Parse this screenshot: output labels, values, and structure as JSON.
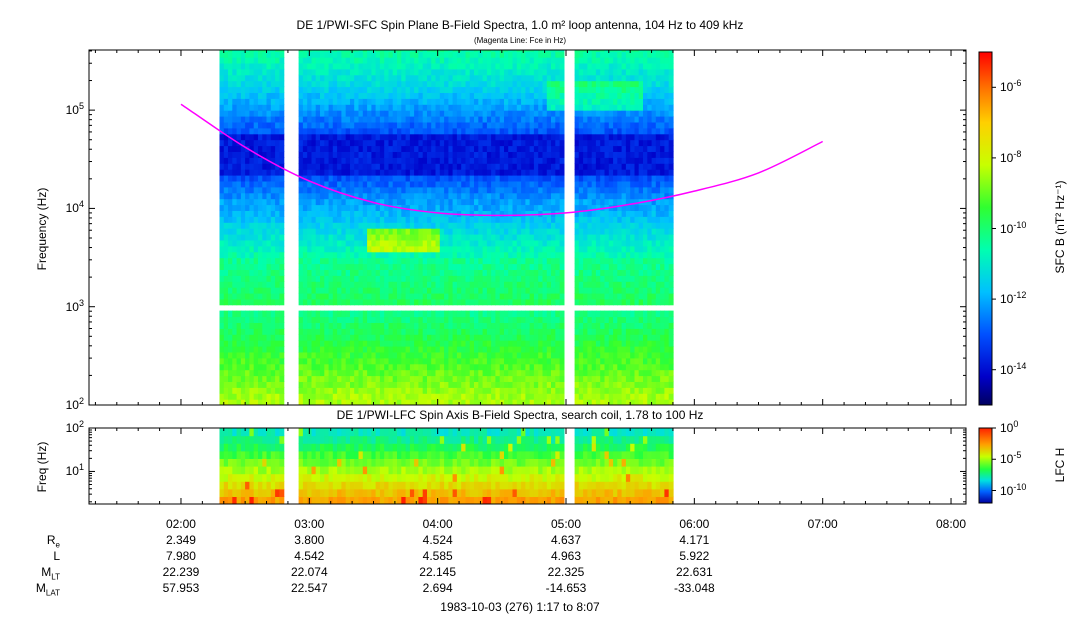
{
  "sfc": {
    "title": "DE 1/PWI-SFC  Spin Plane B-Field Spectra, 1.0 m² loop antenna, 104 Hz to 409 kHz",
    "subtitle": "(Magenta Line: Fce in Hz)",
    "ylabel": "Frequency (Hz)",
    "colorbar_label": "SFC B (nT² Hz⁻¹)",
    "yticks": [
      {
        "base": "10",
        "exp": "2"
      },
      {
        "base": "10",
        "exp": "3"
      },
      {
        "base": "10",
        "exp": "4"
      },
      {
        "base": "10",
        "exp": "5"
      }
    ],
    "cbar_ticks": [
      {
        "base": "10",
        "exp": "-6"
      },
      {
        "base": "10",
        "exp": "-8"
      },
      {
        "base": "10",
        "exp": "-10"
      },
      {
        "base": "10",
        "exp": "-12"
      },
      {
        "base": "10",
        "exp": "-14"
      }
    ]
  },
  "lfc": {
    "title": "DE 1/PWI-LFC  Spin Axis B-Field Spectra, search coil, 1.78 to 100 Hz",
    "ylabel": "Freq (Hz)",
    "colorbar_label": "LFC H",
    "yticks": [
      {
        "base": "10",
        "exp": "1"
      },
      {
        "base": "10",
        "exp": "2"
      }
    ],
    "cbar_ticks": [
      {
        "base": "10",
        "exp": "0"
      },
      {
        "base": "10",
        "exp": "-5"
      },
      {
        "base": "10",
        "exp": "-10"
      }
    ]
  },
  "xaxis": {
    "ticks": [
      "02:00",
      "03:00",
      "04:00",
      "05:00",
      "06:00",
      "07:00",
      "08:00"
    ],
    "footer": "1983-10-03 (276) 1:17 to 8:07"
  },
  "ephemeris": {
    "rows": [
      {
        "label": "R",
        "sub": "e",
        "values": [
          "2.349",
          "3.800",
          "4.524",
          "4.637",
          "4.171"
        ]
      },
      {
        "label": "L",
        "sub": "",
        "values": [
          "7.980",
          "4.542",
          "4.585",
          "4.963",
          "5.922"
        ]
      },
      {
        "label": "M",
        "sub": "LT",
        "values": [
          "22.239",
          "22.074",
          "22.145",
          "22.325",
          "22.631"
        ]
      },
      {
        "label": "M",
        "sub": "LAT",
        "values": [
          "57.953",
          "22.547",
          "2.694",
          "-14.653",
          "-33.048"
        ]
      }
    ]
  },
  "chart_data": [
    {
      "type": "heatmap",
      "title": "DE 1/PWI-SFC  Spin Plane B-Field Spectra, 1.0 m² loop antenna, 104 Hz to 409 kHz",
      "subtitle": "(Magenta Line: Fce in Hz)",
      "xlabel": "",
      "ylabel": "Frequency (Hz)",
      "xrange": [
        "01:17",
        "08:07"
      ],
      "ylim": [
        100,
        409000
      ],
      "yscale": "log",
      "colorbar": {
        "label": "SFC B (nT² Hz⁻¹)",
        "range": [
          1e-15,
          1e-05
        ],
        "scale": "log"
      },
      "data_intervals": [
        [
          "02:18",
          "02:47"
        ],
        [
          "02:55",
          "04:59"
        ],
        [
          "05:04",
          "05:49"
        ]
      ],
      "overlay_line": {
        "name": "Fce",
        "color": "#ff00ff",
        "x": [
          "02:00",
          "02:30",
          "03:00",
          "03:30",
          "04:00",
          "04:30",
          "05:00",
          "05:30",
          "06:00",
          "06:30",
          "07:00"
        ],
        "y": [
          115000,
          42000,
          19000,
          11500,
          9000,
          8500,
          9000,
          11000,
          15000,
          23000,
          48000
        ]
      }
    },
    {
      "type": "heatmap",
      "title": "DE 1/PWI-LFC  Spin Axis B-Field Spectra, search coil, 1.78 to 100 Hz",
      "xlabel": "",
      "ylabel": "Freq (Hz)",
      "xrange": [
        "01:17",
        "08:07"
      ],
      "ylim": [
        1.78,
        100
      ],
      "yscale": "log",
      "colorbar": {
        "label": "LFC H",
        "range": [
          1e-12,
          1
        ],
        "scale": "log"
      },
      "data_intervals": [
        [
          "02:18",
          "02:47"
        ],
        [
          "02:55",
          "04:59"
        ],
        [
          "05:04",
          "05:49"
        ]
      ]
    }
  ],
  "colors": {
    "fce_line": "#ff00ff",
    "background": "#ffffff"
  }
}
